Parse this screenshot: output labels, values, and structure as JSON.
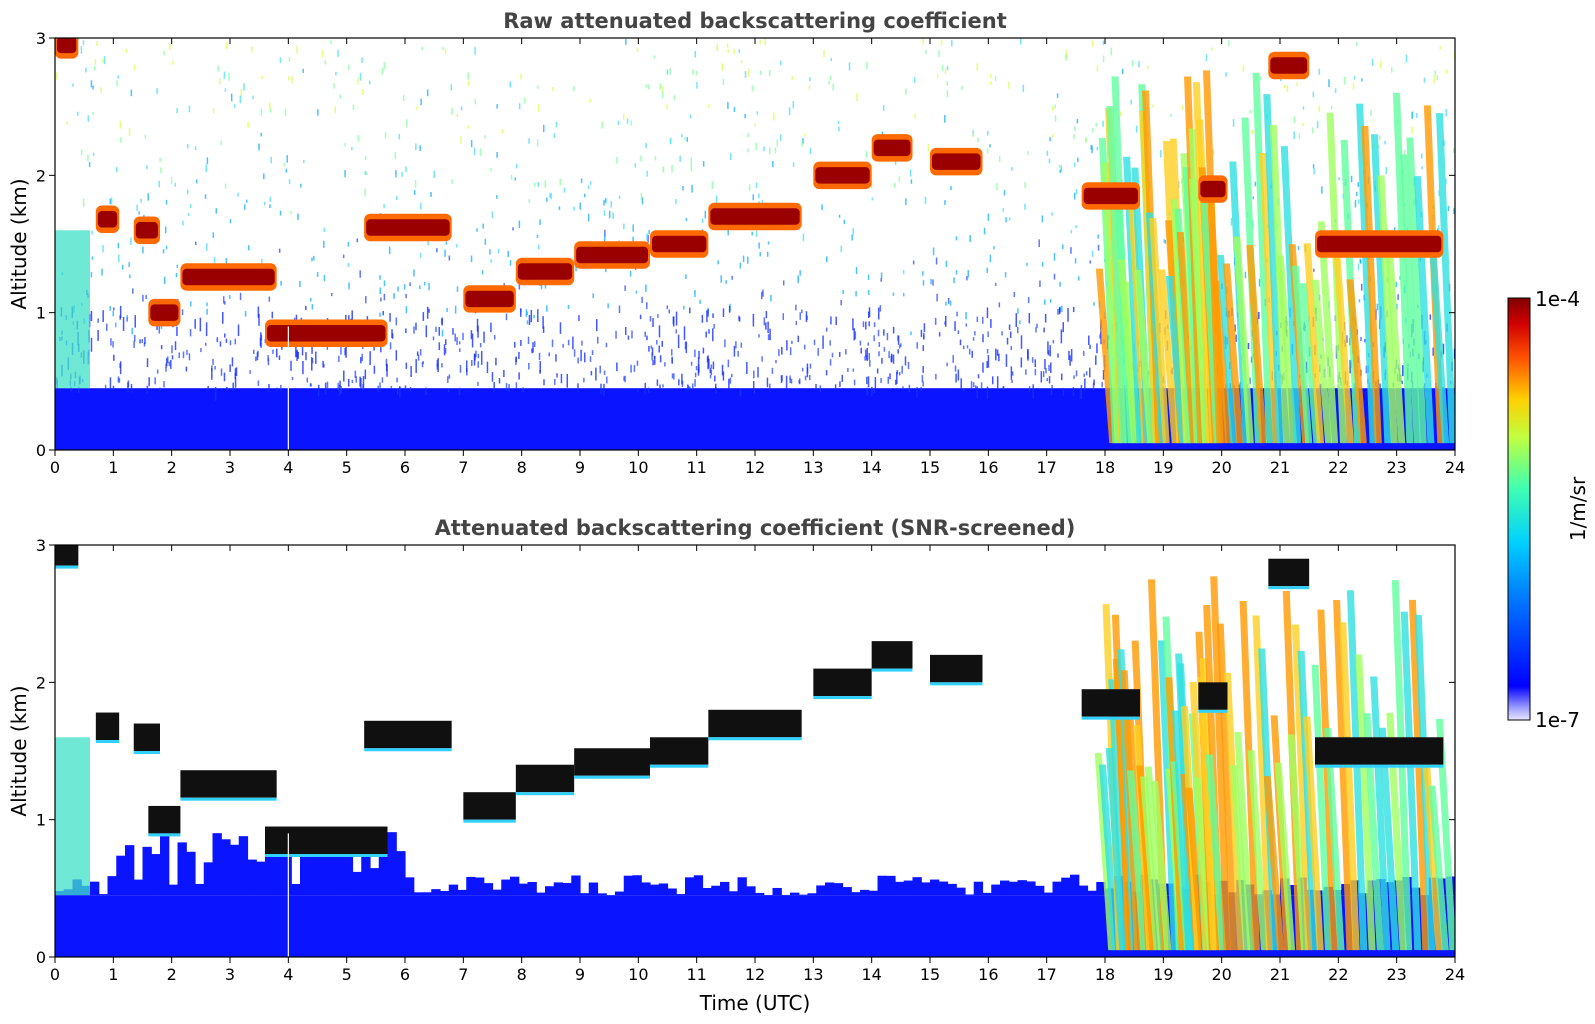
{
  "chart_data": [
    {
      "type": "heatmap",
      "title": "Raw attenuated backscattering coefficient",
      "xlabel": "",
      "ylabel": "Altitude (km)",
      "xlim": [
        0,
        24
      ],
      "ylim": [
        0,
        3
      ],
      "x_ticks": [
        "0",
        "1",
        "2",
        "3",
        "4",
        "5",
        "6",
        "7",
        "8",
        "9",
        "10",
        "11",
        "12",
        "13",
        "14",
        "15",
        "16",
        "17",
        "18",
        "19",
        "20",
        "21",
        "22",
        "23",
        "24"
      ],
      "y_ticks": [
        "0",
        "1",
        "2",
        "3"
      ],
      "cloud_layers": [
        {
          "t0": 0.0,
          "t1": 0.4,
          "alt": 2.95
        },
        {
          "t0": 0.7,
          "t1": 1.1,
          "alt": 1.68
        },
        {
          "t0": 1.35,
          "t1": 1.8,
          "alt": 1.6
        },
        {
          "t0": 1.6,
          "t1": 2.15,
          "alt": 1.0
        },
        {
          "t0": 2.15,
          "t1": 3.8,
          "alt": 1.26
        },
        {
          "t0": 3.6,
          "t1": 5.7,
          "alt": 0.85
        },
        {
          "t0": 5.3,
          "t1": 6.8,
          "alt": 1.62
        },
        {
          "t0": 7.0,
          "t1": 7.9,
          "alt": 1.1
        },
        {
          "t0": 7.9,
          "t1": 8.9,
          "alt": 1.3
        },
        {
          "t0": 8.9,
          "t1": 10.2,
          "alt": 1.42
        },
        {
          "t0": 10.2,
          "t1": 11.2,
          "alt": 1.5
        },
        {
          "t0": 11.2,
          "t1": 12.8,
          "alt": 1.7
        },
        {
          "t0": 13.0,
          "t1": 14.0,
          "alt": 2.0
        },
        {
          "t0": 14.0,
          "t1": 14.7,
          "alt": 2.2
        },
        {
          "t0": 15.0,
          "t1": 15.9,
          "alt": 2.1
        },
        {
          "t0": 17.6,
          "t1": 18.6,
          "alt": 1.85
        },
        {
          "t0": 19.6,
          "t1": 20.1,
          "alt": 1.9
        },
        {
          "t0": 20.8,
          "t1": 21.5,
          "alt": 2.8
        },
        {
          "t0": 21.6,
          "t1": 23.8,
          "alt": 1.5
        }
      ],
      "precip_streaks": [
        {
          "t0": 17.8,
          "t1": 18.8
        },
        {
          "t0": 18.9,
          "t1": 19.7
        },
        {
          "t0": 19.7,
          "t1": 21.5
        },
        {
          "t0": 21.5,
          "t1": 23.8
        }
      ]
    },
    {
      "type": "heatmap",
      "title": "Attenuated backscattering coefficient (SNR-screened)",
      "xlabel": "Time (UTC)",
      "ylabel": "Altitude (km)",
      "xlim": [
        0,
        24
      ],
      "ylim": [
        0,
        3
      ],
      "x_ticks": [
        "0",
        "1",
        "2",
        "3",
        "4",
        "5",
        "6",
        "7",
        "8",
        "9",
        "10",
        "11",
        "12",
        "13",
        "14",
        "15",
        "16",
        "17",
        "18",
        "19",
        "20",
        "21",
        "22",
        "23",
        "24"
      ],
      "y_ticks": [
        "0",
        "1",
        "2",
        "3"
      ]
    }
  ],
  "colorbar": {
    "label": "1/m/sr",
    "max_label": "1e-4",
    "min_label": "1e-7",
    "colormap": "jet",
    "scale": "log",
    "range": [
      1e-07,
      0.0001
    ]
  }
}
